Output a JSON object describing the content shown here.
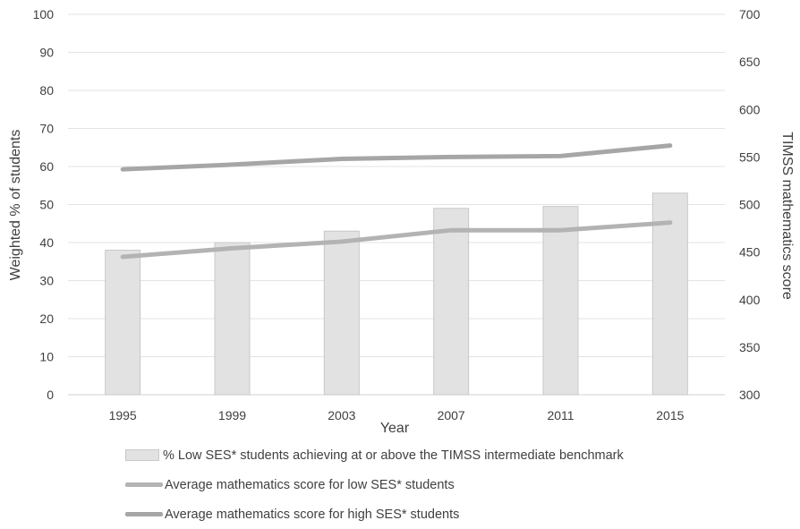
{
  "chart_data": {
    "type": "bar",
    "categories": [
      "1995",
      "1999",
      "2003",
      "2007",
      "2011",
      "2015"
    ],
    "xlabel": "Year",
    "ylabel": "Weighted % of students",
    "y2label": "TIMSS mathematics score",
    "ylim": [
      0,
      100
    ],
    "y2lim": [
      300,
      700
    ],
    "yticks": [
      "0",
      "10",
      "20",
      "30",
      "40",
      "50",
      "60",
      "70",
      "80",
      "90",
      "100"
    ],
    "y2ticks": [
      "300",
      "350",
      "400",
      "450",
      "500",
      "550",
      "600",
      "650",
      "700"
    ],
    "grid": true,
    "legend_position": "bottom",
    "series": [
      {
        "name": "% Low SES* students achieving at or above the TIMSS intermediate benchmark",
        "kind": "bar",
        "axis": "left",
        "color": "#e2e2e2",
        "values": [
          38,
          40,
          43,
          49,
          49.5,
          53
        ]
      },
      {
        "name": "Average mathematics score for low SES* students",
        "kind": "line",
        "axis": "right",
        "color": "#b3b3b3",
        "values": [
          445,
          454,
          461,
          473,
          473,
          481
        ]
      },
      {
        "name": "Average mathematics score for high SES* students",
        "kind": "line",
        "axis": "right",
        "color": "#a6a6a6",
        "values": [
          537,
          542,
          548,
          550,
          551,
          562
        ]
      }
    ]
  }
}
